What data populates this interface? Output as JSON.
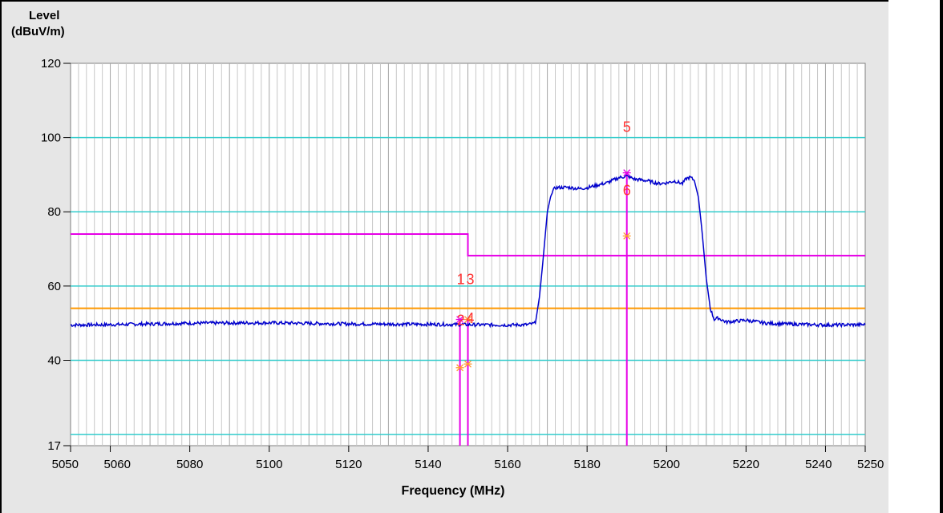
{
  "chart_data": {
    "type": "line",
    "ylabel_line1": "Level",
    "ylabel_line2": "(dBuV/m)",
    "xlabel": "Frequency (MHz)",
    "xlim": [
      5050,
      5250
    ],
    "ylim": [
      17,
      120
    ],
    "yticks": [
      17,
      40,
      60,
      80,
      100,
      120
    ],
    "ytick_labels": [
      "17",
      "40",
      "60",
      "80",
      "100",
      "120"
    ],
    "xticks": [
      5050,
      5060,
      5080,
      5100,
      5120,
      5140,
      5160,
      5180,
      5200,
      5220,
      5240,
      5250
    ],
    "xtick_labels": [
      "5050",
      "5060",
      "5080",
      "5100",
      "5120",
      "5140",
      "5160",
      "5180",
      "5200",
      "5220",
      "5240",
      "5250"
    ],
    "h_gridlines": [
      20,
      40,
      60,
      80,
      100
    ],
    "limit_line_peak": {
      "color": "#e600e6",
      "segments": [
        {
          "x": [
            5050,
            5150
          ],
          "y": 74
        },
        {
          "x": [
            5150,
            5250
          ],
          "y": 68.2
        }
      ]
    },
    "limit_line_avg": {
      "color": "#ff9900",
      "y": 54
    },
    "trace_color": "#0000cc",
    "trace": [
      [
        5050,
        49.5
      ],
      [
        5060,
        49.6
      ],
      [
        5080,
        50.0
      ],
      [
        5100,
        50.1
      ],
      [
        5120,
        49.8
      ],
      [
        5140,
        49.7
      ],
      [
        5150,
        49.6
      ],
      [
        5160,
        49.5
      ],
      [
        5165,
        49.6
      ],
      [
        5167,
        50.0
      ],
      [
        5168,
        57
      ],
      [
        5169,
        68
      ],
      [
        5170,
        80
      ],
      [
        5171,
        85
      ],
      [
        5172,
        86.5
      ],
      [
        5175,
        86.6
      ],
      [
        5178,
        86.2
      ],
      [
        5180,
        86.5
      ],
      [
        5183,
        87.3
      ],
      [
        5185,
        87.8
      ],
      [
        5188,
        89.2
      ],
      [
        5190,
        89.6
      ],
      [
        5192,
        88.8
      ],
      [
        5195,
        88.4
      ],
      [
        5198,
        87.6
      ],
      [
        5200,
        87.8
      ],
      [
        5202,
        88.3
      ],
      [
        5204,
        87.6
      ],
      [
        5205,
        89.0
      ],
      [
        5206,
        89.3
      ],
      [
        5207,
        88.4
      ],
      [
        5208,
        84
      ],
      [
        5209,
        74
      ],
      [
        5210,
        62
      ],
      [
        5211,
        54
      ],
      [
        5212,
        51.0
      ],
      [
        5213,
        51.4
      ],
      [
        5215,
        50.3
      ],
      [
        5220,
        50.8
      ],
      [
        5225,
        50.0
      ],
      [
        5230,
        49.8
      ],
      [
        5240,
        49.5
      ],
      [
        5250,
        49.6
      ]
    ],
    "markers": [
      {
        "label": "1",
        "x": 5148.0,
        "y": 51.0,
        "label_y": 62
      },
      {
        "label": "2",
        "x": 5148.0,
        "y": 38.0,
        "label_y": 51
      },
      {
        "label": "3",
        "x": 5150.0,
        "y": 51.0,
        "label_y": 62
      },
      {
        "label": "4",
        "x": 5150.0,
        "y": 39.0,
        "label_y": 51.5
      },
      {
        "label": "5",
        "x": 5190.0,
        "y": 90.5,
        "label_y": 103
      },
      {
        "label": "6",
        "x": 5190.0,
        "y": 73.5,
        "label_y": 86
      }
    ],
    "marker_color": "#ff3333",
    "marker_line_color": "#e600e6"
  }
}
